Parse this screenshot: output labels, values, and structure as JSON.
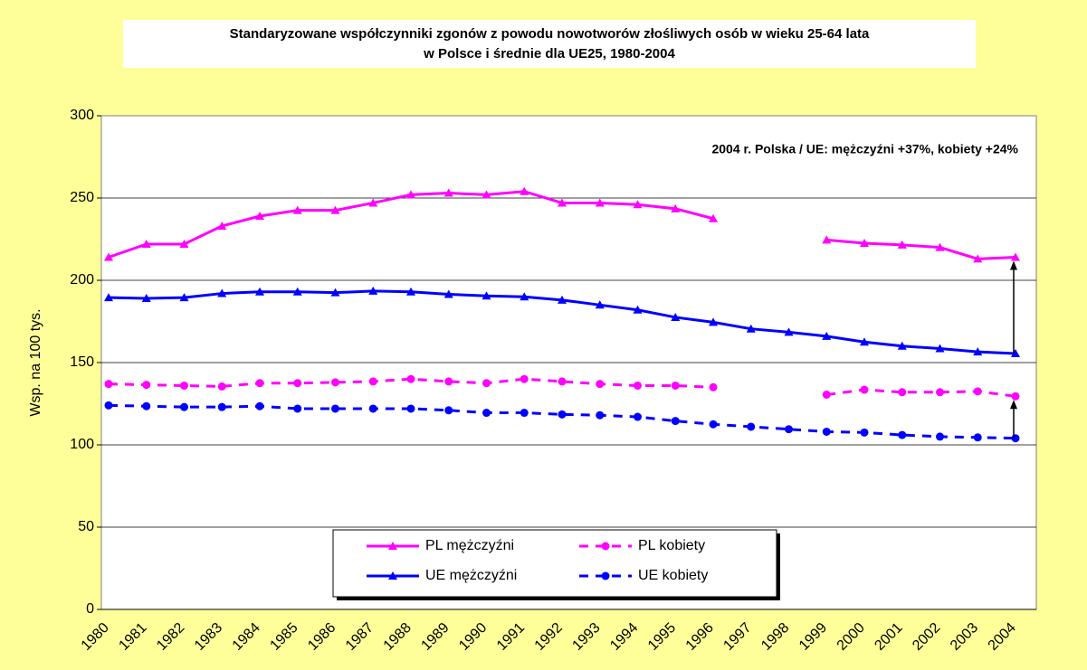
{
  "chart_data": {
    "type": "line",
    "title": [
      "Standaryzowane współczynniki zgonów z powodu nowotworów złośliwych osób w wieku 25-64 lata",
      "w Polsce i średnie dla UE25, 1980-2004"
    ],
    "annotation": "2004 r.  Polska / UE:  mężczyźni +37%, kobiety +24%",
    "y_label": "Wsp. na 100 tys.",
    "categories": [
      "1980",
      "1981",
      "1982",
      "1983",
      "1984",
      "1985",
      "1986",
      "1987",
      "1988",
      "1989",
      "1990",
      "1991",
      "1992",
      "1993",
      "1994",
      "1995",
      "1996",
      "1997",
      "1998",
      "1999",
      "2000",
      "2001",
      "2002",
      "2003",
      "2004"
    ],
    "series": [
      {
        "name": "PL mężczyźni",
        "color": "#ff00ff",
        "dashed": false,
        "marker": "triangle",
        "values": [
          214,
          222,
          222,
          233,
          239,
          242.5,
          242.5,
          247,
          252,
          253,
          252,
          254,
          247,
          247,
          246,
          243.5,
          237.5,
          null,
          null,
          224.5,
          222.5,
          221.5,
          220,
          213,
          214
        ]
      },
      {
        "name": "PL kobiety",
        "color": "#ff00ff",
        "dashed": true,
        "marker": "circle",
        "values": [
          137,
          136.5,
          136,
          135.5,
          137.5,
          137.5,
          138,
          138.5,
          140,
          138.5,
          137.5,
          140,
          138.5,
          137,
          136,
          136,
          135,
          null,
          null,
          130.5,
          133.5,
          132,
          132,
          132.5,
          129.5
        ]
      },
      {
        "name": "UE mężczyźni",
        "color": "#0000ff",
        "dashed": false,
        "marker": "triangle",
        "values": [
          189.5,
          189,
          189.5,
          192,
          193,
          193,
          192.5,
          193.5,
          193,
          191.5,
          190.5,
          190,
          188,
          185,
          182,
          177.5,
          174.5,
          170.5,
          168.5,
          166,
          162.5,
          160,
          158.5,
          156.5,
          155.5
        ]
      },
      {
        "name": "UE kobiety",
        "color": "#0000ff",
        "dashed": true,
        "marker": "circle",
        "values": [
          124,
          123.5,
          123,
          123,
          123.5,
          122,
          122,
          122,
          122,
          121,
          119.5,
          119.5,
          118.5,
          118,
          117,
          114.5,
          112.5,
          111,
          109.5,
          108,
          107.5,
          106,
          105,
          104.5,
          104
        ]
      }
    ],
    "ylim": [
      0,
      300
    ],
    "yticks": [
      0,
      50,
      100,
      150,
      200,
      250,
      300
    ],
    "grid": true
  }
}
